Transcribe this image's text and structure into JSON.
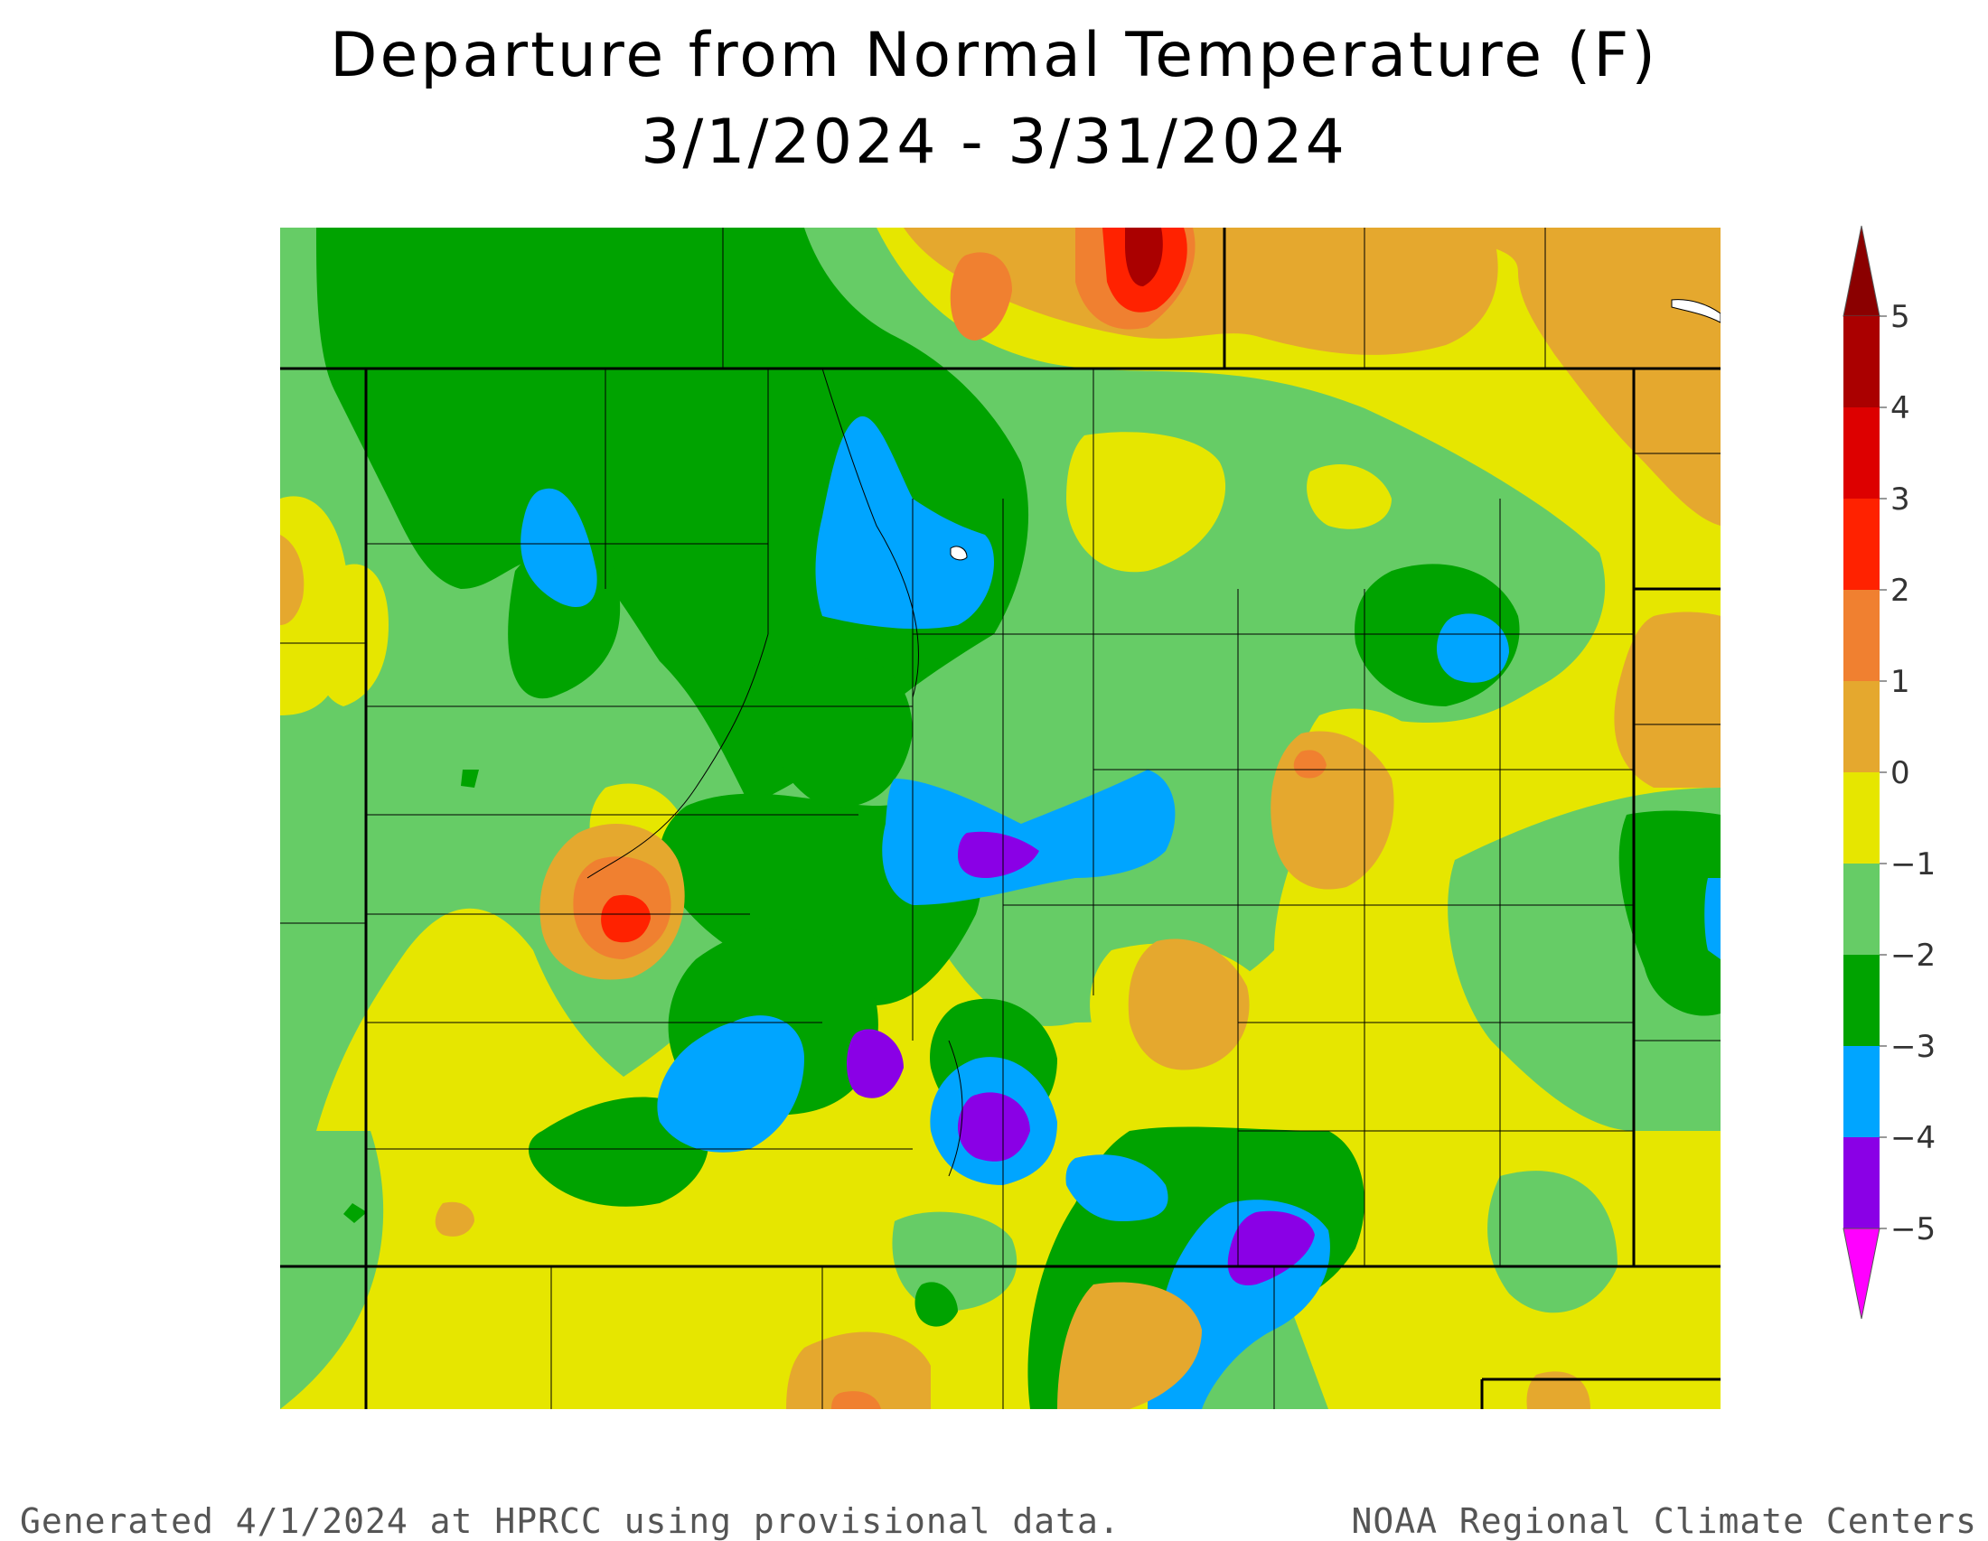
{
  "title": {
    "line1": "Departure from Normal Temperature (F)",
    "line2": "3/1/2024 - 3/31/2024"
  },
  "footer": {
    "left": "Generated 4/1/2024 at HPRCC using provisional data.",
    "right": "NOAA Regional Climate Centers"
  },
  "legend": {
    "levels": [
      {
        "label": "5",
        "color": "#aa0000"
      },
      {
        "label": "4",
        "color": "#dd0000"
      },
      {
        "label": "3",
        "color": "#ff2200"
      },
      {
        "label": "2",
        "color": "#f08030"
      },
      {
        "label": "1",
        "color": "#e5a82e"
      },
      {
        "label": "0",
        "color": "#e6e600"
      },
      {
        "label": "−1",
        "color": "#66cc66"
      },
      {
        "label": "−2",
        "color": "#00a300"
      },
      {
        "label": "−3",
        "color": "#00a5ff"
      },
      {
        "label": "−4",
        "color": "#8a00e6"
      },
      {
        "label": "−5",
        "color": "#a000c8"
      }
    ],
    "top_arrow_color": "#8b0000",
    "bottom_arrow_color": "#ff00ff"
  },
  "map": {
    "background_color": "#e6e600",
    "region": "Colorado and surrounding states"
  }
}
